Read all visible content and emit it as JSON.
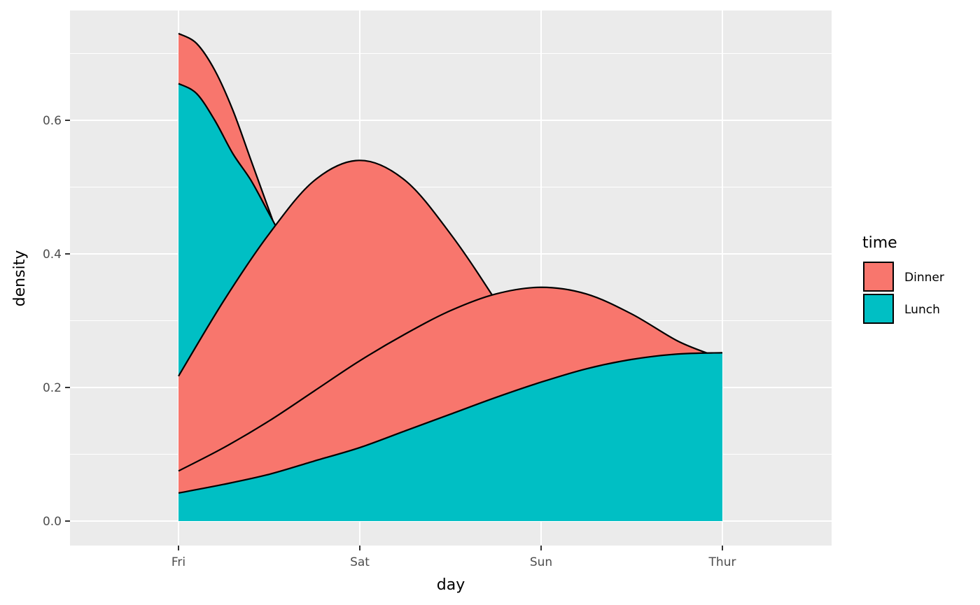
{
  "chart_data": {
    "type": "area",
    "xlabel": "day",
    "ylabel": "density",
    "categories": [
      "Fri",
      "Sat",
      "Sun",
      "Thur"
    ],
    "y_ticks": [
      "0.0",
      "0.2",
      "0.4",
      "0.6"
    ],
    "ylim": [
      -0.036,
      0.765
    ],
    "xlim": [
      0.4,
      4.6
    ],
    "grid": true,
    "legend": {
      "title": "time",
      "position": "right",
      "entries": [
        {
          "label": "Dinner",
          "color": "#F8766D"
        },
        {
          "label": "Lunch",
          "color": "#00BFC4"
        }
      ]
    },
    "series": [
      {
        "name": "Dinner (Fri)",
        "group": "Dinner",
        "x": [
          1,
          1.1,
          1.2,
          1.3,
          1.4,
          1.5,
          1.6
        ],
        "y": [
          0.73,
          0.715,
          0.675,
          0.615,
          0.54,
          0.465,
          0.39
        ]
      },
      {
        "name": "Lunch (Fri)",
        "group": "Lunch",
        "x": [
          1,
          1.1,
          1.2,
          1.3,
          1.4,
          1.5,
          1.6
        ],
        "y": [
          0.655,
          0.64,
          0.6,
          0.55,
          0.51,
          0.46,
          0.41
        ]
      },
      {
        "name": "Dinner (Sat)",
        "group": "Dinner",
        "x": [
          1,
          1.25,
          1.5,
          1.75,
          2,
          2.25,
          2.5,
          2.75,
          3
        ],
        "y": [
          0.217,
          0.33,
          0.43,
          0.51,
          0.54,
          0.51,
          0.43,
          0.33,
          0.22
        ]
      },
      {
        "name": "Dinner (Sun)",
        "group": "Dinner",
        "x": [
          1,
          1.25,
          1.5,
          1.75,
          2,
          2.25,
          2.5,
          2.75,
          3,
          3.25,
          3.5,
          3.75,
          3.93
        ],
        "y": [
          0.075,
          0.11,
          0.15,
          0.195,
          0.24,
          0.28,
          0.315,
          0.34,
          0.35,
          0.34,
          0.31,
          0.27,
          0.25
        ]
      },
      {
        "name": "Lunch (Thur)",
        "group": "Lunch",
        "x": [
          1,
          1.25,
          1.5,
          1.75,
          2,
          2.25,
          2.5,
          2.75,
          3,
          3.25,
          3.5,
          3.75,
          4
        ],
        "y": [
          0.042,
          0.055,
          0.07,
          0.09,
          0.11,
          0.135,
          0.16,
          0.185,
          0.208,
          0.228,
          0.242,
          0.25,
          0.252
        ]
      }
    ]
  }
}
